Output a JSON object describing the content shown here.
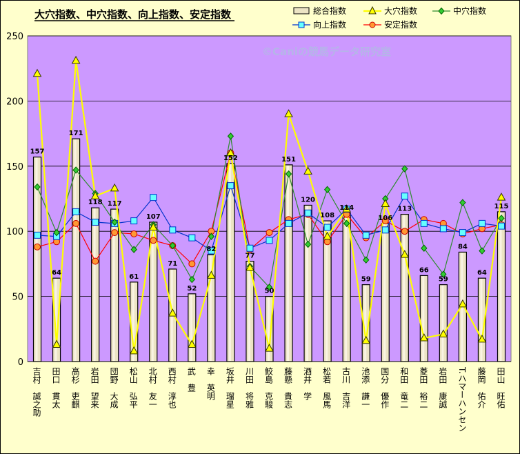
{
  "chart_data": {
    "type": "bar",
    "title": "大穴指数、中穴指数、向上指数、安定指数",
    "watermark": "©Caniの競馬データ研究室",
    "ylim": [
      0,
      250
    ],
    "yticks": [
      0,
      50,
      100,
      150,
      200,
      250
    ],
    "legend_position": "top-right",
    "grid": true,
    "colors": {
      "plot_bg": "#cc99ff",
      "bar": "#ece4c4",
      "bar_edge": "#000000",
      "daiana": "#ffff00",
      "chuana": "#2e8b2e",
      "kojo": "#0033cc",
      "antei": "#ff0000"
    },
    "categories": [
      "吉村　誠之助",
      "田口　貫太",
      "高杉　吏麒",
      "岩田　望来",
      "団野　大成",
      "松山　弘平",
      "北村　友一",
      "西村　淳也",
      "武　豊",
      "幸　英明",
      "坂井　瑠星",
      "川田　将雅",
      "鮫島　克駿",
      "藤懸　貴志",
      "酒井　学",
      "松若　風馬",
      "古川　吉洋",
      "池添　謙一",
      "国分　優作",
      "和田　竜二",
      "菱田　裕二",
      "岩田　康誠",
      "T.ハマーハンセン",
      "藤岡　佑介",
      "田山　旺佑"
    ],
    "series": [
      {
        "name": "総合指数",
        "type": "bar",
        "values": [
          157,
          64,
          171,
          118,
          117,
          61,
          107,
          71,
          52,
          82,
          152,
          77,
          50,
          151,
          120,
          108,
          114,
          59,
          106,
          113,
          66,
          59,
          84,
          64,
          115
        ]
      },
      {
        "name": "大穴指数",
        "type": "line",
        "values": [
          221,
          13,
          231,
          127,
          133,
          8,
          103,
          37,
          13,
          66,
          160,
          72,
          10,
          190,
          146,
          96,
          117,
          16,
          121,
          82,
          18,
          21,
          44,
          17,
          126
        ]
      },
      {
        "name": "中穴指数",
        "type": "line",
        "values": [
          134,
          99,
          147,
          129,
          107,
          86,
          105,
          89,
          63,
          96,
          173,
          73,
          57,
          144,
          90,
          132,
          106,
          78,
          125,
          148,
          87,
          67,
          122,
          85,
          110
        ]
      },
      {
        "name": "向上指数",
        "type": "line",
        "values": [
          97,
          96,
          115,
          107,
          106,
          108,
          126,
          101,
          95,
          85,
          135,
          87,
          93,
          106,
          114,
          103,
          117,
          97,
          101,
          127,
          106,
          102,
          99,
          106,
          104
        ]
      },
      {
        "name": "安定指数",
        "type": "line",
        "values": [
          88,
          92,
          106,
          77,
          99,
          98,
          93,
          89,
          75,
          100,
          160,
          86,
          99,
          109,
          113,
          92,
          113,
          95,
          108,
          100,
          109,
          106,
          98,
          102,
          105
        ]
      }
    ]
  }
}
